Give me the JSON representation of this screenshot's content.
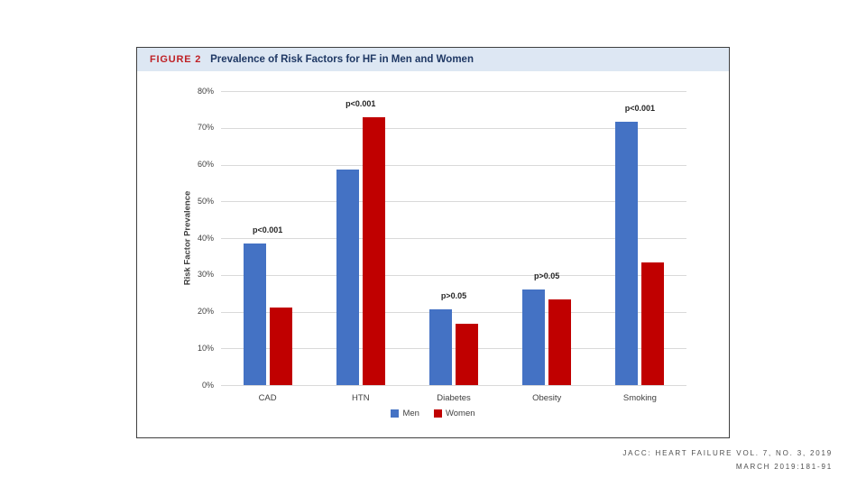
{
  "figure": {
    "label": "FIGURE 2",
    "title": "Prevalence of Risk Factors for HF in Men and Women"
  },
  "chart_data": {
    "type": "bar",
    "title": "Prevalence of Risk Factors for HF in Men and Women",
    "categories": [
      "CAD",
      "HTN",
      "Diabetes",
      "Obesity",
      "Smoking"
    ],
    "series": [
      {
        "name": "Men",
        "color": "#4472c4",
        "values": [
          38.5,
          58.6,
          20.5,
          26.1,
          71.6
        ]
      },
      {
        "name": "Women",
        "color": "#c00000",
        "values": [
          21.0,
          72.8,
          16.8,
          23.2,
          33.4
        ]
      }
    ],
    "p_values": [
      "p<0.001",
      "p<0.001",
      "p>0.05",
      "p>0.05",
      "p<0.001"
    ],
    "xlabel": "",
    "ylabel": "Risk Factor Prevalence",
    "ylim": [
      0,
      80
    ],
    "ytick_step": 10,
    "ytick_labels": [
      "0%",
      "10%",
      "20%",
      "30%",
      "40%",
      "50%",
      "60%",
      "70%",
      "80%"
    ],
    "grid": true,
    "legend_position": "bottom"
  },
  "footer": {
    "line1": "JACC: HEART FAILURE VOL. 7, NO. 3, 2019",
    "line2": "MARCH 2019:181-91"
  }
}
